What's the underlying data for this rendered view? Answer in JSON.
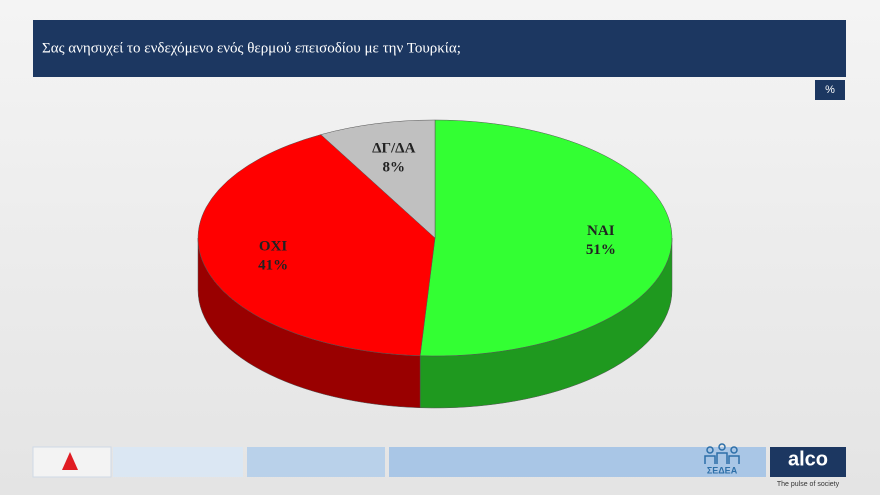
{
  "chart_data": {
    "type": "pie",
    "title": "Σας ανησυχεί το ενδεχόμενο ενός θερμού επεισοδίου με την Τουρκία;",
    "unit": "%",
    "categories": [
      "ΝΑΙ",
      "ΟΧΙ",
      "ΔΓ/ΔΑ"
    ],
    "values": [
      51,
      41,
      8
    ],
    "value_labels": [
      "51%",
      "41%",
      "8%"
    ],
    "colors": [
      "#33ff33",
      "#ff0000",
      "#c0c0c0"
    ]
  },
  "footer": {
    "sponsor": "ΣΕΔΕΑ",
    "brand": "alco",
    "tagline": "The pulse of society"
  }
}
